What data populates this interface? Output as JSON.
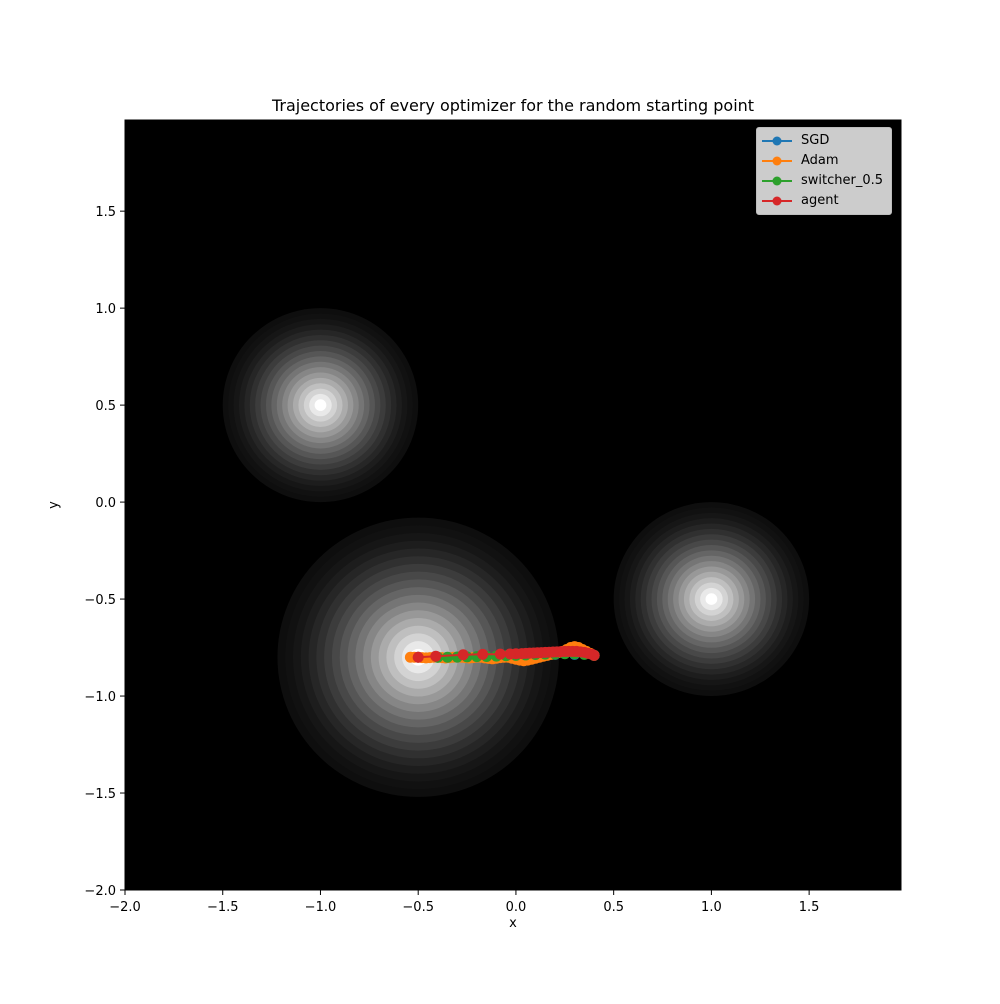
{
  "chart_data": {
    "type": "line",
    "title": "Trajectories of every optimizer for the random starting point",
    "xlabel": "x",
    "ylabel": "y",
    "xlim": [
      -2.0,
      1.97
    ],
    "ylim": [
      -2.0,
      1.97
    ],
    "xticks": [
      "−2.0",
      "−1.5",
      "−1.0",
      "−0.5",
      "0.0",
      "0.5",
      "1.0",
      "1.5"
    ],
    "xtick_values": [
      -2.0,
      -1.5,
      -1.0,
      -0.5,
      0.0,
      0.5,
      1.0,
      1.5
    ],
    "yticks": [
      "−2.0",
      "−1.5",
      "−1.0",
      "−0.5",
      "0.0",
      "0.5",
      "1.0",
      "1.5"
    ],
    "ytick_values": [
      -2.0,
      -1.5,
      -1.0,
      -0.5,
      0.0,
      0.5,
      1.0,
      1.5
    ],
    "grid": false,
    "legend_position": "top-right",
    "background": {
      "type": "contour",
      "colormap": "gray",
      "peaks": [
        {
          "x": -1.0,
          "y": 0.5,
          "radius": 0.5
        },
        {
          "x": -0.5,
          "y": -0.8,
          "radius": 0.72
        },
        {
          "x": 1.0,
          "y": -0.5,
          "radius": 0.5
        }
      ]
    },
    "series": [
      {
        "name": "SGD",
        "color": "#1f77b4",
        "x": [
          0.4,
          0.3,
          0.2,
          0.1,
          0.0,
          -0.1,
          -0.2,
          -0.3,
          -0.4,
          -0.5
        ],
        "y": [
          -0.79,
          -0.785,
          -0.785,
          -0.79,
          -0.795,
          -0.797,
          -0.8,
          -0.8,
          -0.8,
          -0.8
        ]
      },
      {
        "name": "Adam",
        "color": "#ff7f0e",
        "x": [
          0.4,
          0.38,
          0.36,
          0.34,
          0.32,
          0.3,
          0.28,
          0.26,
          0.24,
          0.22,
          0.2,
          0.18,
          0.16,
          0.14,
          0.12,
          0.1,
          0.08,
          0.06,
          0.04,
          0.02,
          0.0,
          -0.02,
          -0.04,
          -0.06,
          -0.08,
          -0.1,
          -0.12,
          -0.14,
          -0.16,
          -0.18,
          -0.2,
          -0.22,
          -0.24,
          -0.26,
          -0.28,
          -0.3,
          -0.32,
          -0.34,
          -0.36,
          -0.38,
          -0.4,
          -0.42,
          -0.44,
          -0.46,
          -0.48,
          -0.5,
          -0.52,
          -0.54
        ],
        "y": [
          -0.79,
          -0.78,
          -0.77,
          -0.76,
          -0.75,
          -0.745,
          -0.75,
          -0.76,
          -0.77,
          -0.775,
          -0.78,
          -0.785,
          -0.79,
          -0.795,
          -0.8,
          -0.805,
          -0.81,
          -0.815,
          -0.818,
          -0.815,
          -0.81,
          -0.805,
          -0.8,
          -0.8,
          -0.802,
          -0.805,
          -0.808,
          -0.806,
          -0.803,
          -0.8,
          -0.8,
          -0.802,
          -0.804,
          -0.802,
          -0.8,
          -0.8,
          -0.8,
          -0.802,
          -0.804,
          -0.802,
          -0.8,
          -0.8,
          -0.802,
          -0.803,
          -0.802,
          -0.8,
          -0.8,
          -0.8
        ]
      },
      {
        "name": "switcher_0.5",
        "color": "#2ca02c",
        "x": [
          0.4,
          0.35,
          0.3,
          0.25,
          0.2,
          0.15,
          0.1,
          0.05,
          0.0,
          -0.05,
          -0.1,
          -0.15,
          -0.2,
          -0.25,
          -0.3,
          -0.35,
          -0.4
        ],
        "y": [
          -0.79,
          -0.785,
          -0.782,
          -0.782,
          -0.783,
          -0.784,
          -0.786,
          -0.788,
          -0.79,
          -0.792,
          -0.794,
          -0.796,
          -0.797,
          -0.798,
          -0.799,
          -0.8,
          -0.8
        ]
      },
      {
        "name": "agent",
        "color": "#d62728",
        "x": [
          0.4,
          0.39,
          0.37,
          0.35,
          0.33,
          0.31,
          0.29,
          0.27,
          0.25,
          0.23,
          0.21,
          0.19,
          0.17,
          0.15,
          0.13,
          0.11,
          0.09,
          0.07,
          0.05,
          0.03,
          0.0,
          -0.03,
          -0.08,
          -0.17,
          -0.27,
          -0.41,
          -0.5
        ],
        "y": [
          -0.79,
          -0.785,
          -0.78,
          -0.775,
          -0.772,
          -0.77,
          -0.77,
          -0.77,
          -0.77,
          -0.771,
          -0.772,
          -0.773,
          -0.774,
          -0.775,
          -0.776,
          -0.777,
          -0.778,
          -0.779,
          -0.78,
          -0.781,
          -0.782,
          -0.783,
          -0.784,
          -0.785,
          -0.787,
          -0.795,
          -0.8
        ]
      }
    ]
  }
}
